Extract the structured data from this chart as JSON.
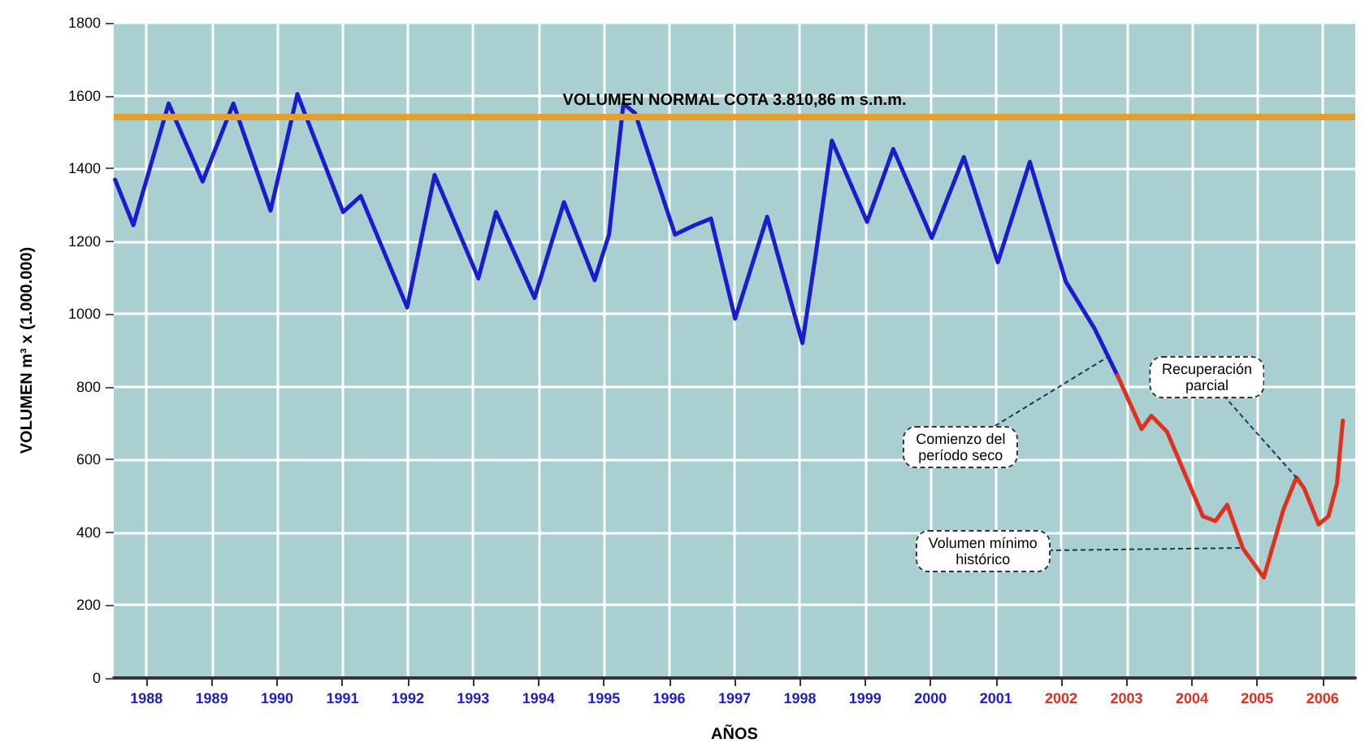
{
  "chart_data": {
    "type": "line",
    "xlabel": "AÑOS",
    "ylabel": "VOLUMEN m³ x (1.000.000)",
    "xlim": [
      1988,
      2007
    ],
    "ylim": [
      0,
      1800
    ],
    "xticks": [
      {
        "value": 1988.5,
        "label": "1988"
      },
      {
        "value": 1989.5,
        "label": "1989"
      },
      {
        "value": 1990.5,
        "label": "1990"
      },
      {
        "value": 1991.5,
        "label": "1991"
      },
      {
        "value": 1992.5,
        "label": "1992"
      },
      {
        "value": 1993.5,
        "label": "1993"
      },
      {
        "value": 1994.5,
        "label": "1994"
      },
      {
        "value": 1995.5,
        "label": "1995"
      },
      {
        "value": 1996.5,
        "label": "1996"
      },
      {
        "value": 1997.5,
        "label": "1997"
      },
      {
        "value": 1998.5,
        "label": "1998"
      },
      {
        "value": 1999.5,
        "label": "1999"
      },
      {
        "value": 2000.5,
        "label": "2000"
      },
      {
        "value": 2001.5,
        "label": "2001"
      },
      {
        "value": 2002.5,
        "label": "2002"
      },
      {
        "value": 2003.5,
        "label": "2003"
      },
      {
        "value": 2004.5,
        "label": "2004"
      },
      {
        "value": 2005.5,
        "label": "2005"
      },
      {
        "value": 2006.5,
        "label": "2006"
      }
    ],
    "yticks": [
      0,
      200,
      400,
      600,
      800,
      1000,
      1200,
      1400,
      1600,
      1800
    ],
    "grid": true,
    "marker": "none",
    "line_style": "solid",
    "series": [
      {
        "color": "#1c1ccc",
        "x": [
          1988.02,
          1988.3,
          1988.84,
          1989.36,
          1989.83,
          1990.4,
          1990.81,
          1991.51,
          1991.78,
          1992.49,
          1992.91,
          1993.58,
          1993.85,
          1994.44,
          1994.89,
          1995.36,
          1995.58,
          1995.8,
          1995.98,
          1996.59,
          1996.89,
          1997.14,
          1997.51,
          1998.0,
          1998.54,
          1998.74,
          1998.99,
          1999.53,
          1999.93,
          2000.52,
          2001.01,
          2001.53,
          2002.02,
          2002.57,
          2003.01,
          2003.36
        ],
        "values": [
          1369,
          1244,
          1578,
          1364,
          1578,
          1284,
          1604,
          1280,
          1324,
          1018,
          1382,
          1098,
          1280,
          1044,
          1307,
          1093,
          1218,
          1578,
          1551,
          1218,
          1244,
          1262,
          987,
          1267,
          920,
          1160,
          1476,
          1253,
          1453,
          1209,
          1431,
          1142,
          1418,
          1089,
          960,
          831
        ]
      },
      {
        "color": "#e03020",
        "x": [
          2003.36,
          2003.73,
          2003.88,
          2004.12,
          2004.67,
          2004.86,
          2005.04,
          2005.28,
          2005.6,
          2005.9,
          2006.1,
          2006.22,
          2006.44,
          2006.59,
          2006.72,
          2006.81
        ],
        "values": [
          831,
          684,
          720,
          676,
          444,
          431,
          476,
          356,
          276,
          462,
          551,
          520,
          422,
          444,
          533,
          707
        ]
      }
    ],
    "ref_lines": [
      {
        "axis": "y",
        "value": 1542,
        "label": "VOLUMEN NORMAL COTA 3.810,86 m s.n.m.",
        "color": "#e0a030",
        "line_style": "solid"
      }
    ],
    "annotations": [
      {
        "text": "Comienzo del\nperíodo seco",
        "x": 2003.2,
        "y": 880
      },
      {
        "text": "Recuperación\nparcial",
        "x": 2006.1,
        "y": 551
      },
      {
        "text": "Volumen mínimo\nhistórico",
        "x": 2005.28,
        "y": 356
      }
    ]
  }
}
